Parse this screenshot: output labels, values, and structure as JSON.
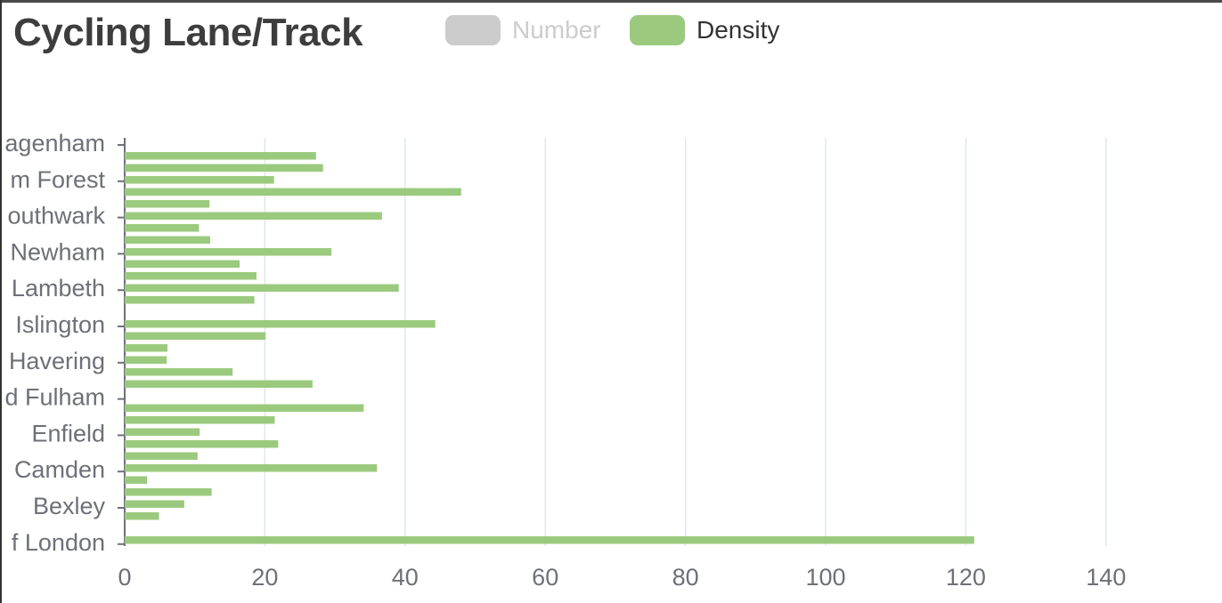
{
  "colors": {
    "density": "#9bca7e",
    "number_disabled": "#cccccc",
    "grid": "#e0e6f1",
    "axis": "#6e7079"
  },
  "legend": {
    "items": [
      {
        "label": "Number",
        "state": "off"
      },
      {
        "label": "Density",
        "state": "on"
      }
    ]
  },
  "chart_data": {
    "type": "bar",
    "orientation": "horizontal",
    "title": "Cycling Lane/Track",
    "xlim": [
      0,
      140
    ],
    "xticks": [
      0,
      20,
      40,
      60,
      80,
      100,
      120,
      140
    ],
    "grid": true,
    "legend_placement": "top",
    "visible_category_labels": [
      "agenham",
      "m Forest",
      "outhwark",
      "Newham",
      "Lambeth",
      "Islington",
      "Havering",
      "d Fulham",
      "Enfield",
      "Camden",
      "Bexley",
      "f London"
    ],
    "series": [
      {
        "name": "Density",
        "values": [
          0,
          27.3,
          28.3,
          21.3,
          48,
          12.1,
          36.7,
          10.6,
          12.2,
          29.5,
          16.4,
          18.8,
          39.1,
          18.5,
          0,
          44.3,
          20.1,
          6.1,
          6.0,
          15.4,
          26.8,
          0,
          34.1,
          21.4,
          10.7,
          21.9,
          10.4,
          36,
          3.2,
          12.4,
          8.5,
          4.9,
          0,
          121.2
        ]
      }
    ]
  }
}
